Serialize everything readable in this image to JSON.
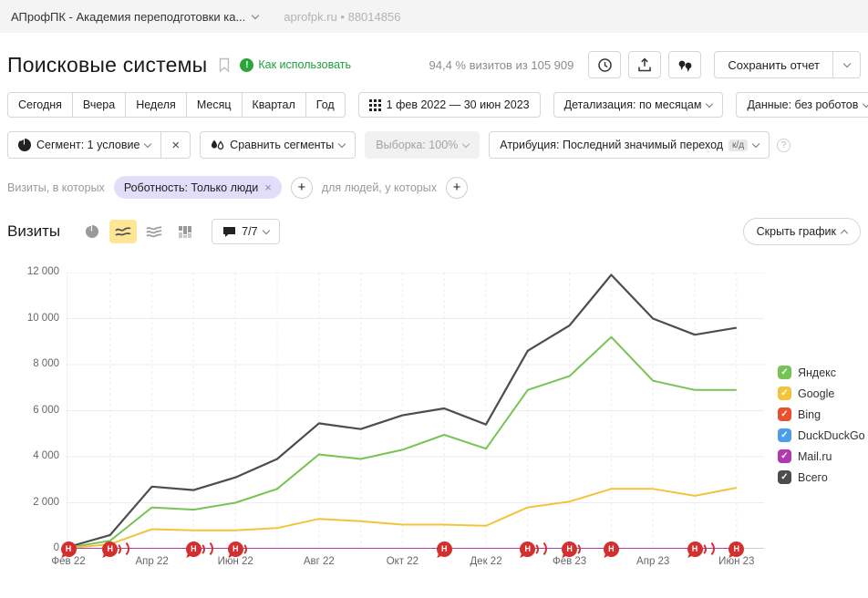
{
  "top_bar": {
    "counter_name": "АПрофПК - Академия переподготовки ка...",
    "counter_meta": "aprofpk.ru • 88014856"
  },
  "header": {
    "title": "Поисковые системы",
    "help_link": "Как использовать",
    "visits_share": "94,4 % визитов из 105 909",
    "save_report": "Сохранить отчет"
  },
  "period": {
    "presets": [
      "Сегодня",
      "Вчера",
      "Неделя",
      "Месяц",
      "Квартал",
      "Год"
    ],
    "range": "1 фев 2022 — 30 июн 2023",
    "detail": "Детализация: по месяцам",
    "data_mode": "Данные: без роботов"
  },
  "segments": {
    "segment": "Сегмент: 1 условие",
    "segment_close": "×",
    "compare": "Сравнить сегменты",
    "sampling": "Выборка: 100%",
    "attribution": "Атрибуция: Последний значимый переход",
    "attribution_badge": "к/д"
  },
  "filters": {
    "visits_label": "Визиты, в которых",
    "chip": "Роботность: Только люди",
    "chip_close": "×",
    "plus": "+",
    "people_label": "для людей, у которых"
  },
  "chart_header": {
    "title": "Визиты",
    "annotations_count": "7/7",
    "hide_chart": "Скрыть график"
  },
  "chart_data": {
    "type": "line",
    "title": "Визиты",
    "x": [
      "Фев 22",
      "Мар 22",
      "Апр 22",
      "Май 22",
      "Июн 22",
      "Июл 22",
      "Авг 22",
      "Сен 22",
      "Окт 22",
      "Ноя 22",
      "Дек 22",
      "Янв 23",
      "Фев 23",
      "Мар 23",
      "Апр 23",
      "Май 23",
      "Июн 23"
    ],
    "xtick_every": 2,
    "ylim": [
      0,
      12000
    ],
    "yticks": [
      {
        "value": 12000,
        "label": "12 000"
      },
      {
        "value": 10000,
        "label": "10 000"
      },
      {
        "value": 8000,
        "label": "8 000"
      },
      {
        "value": 6000,
        "label": "6 000"
      },
      {
        "value": 4000,
        "label": "4 000"
      },
      {
        "value": 2000,
        "label": "2 000"
      },
      {
        "value": 0,
        "label": "0"
      }
    ],
    "grid": true,
    "legend_position": "right",
    "series": [
      {
        "name": "Яндекс",
        "color": "#77c353",
        "values": [
          50,
          350,
          1800,
          1700,
          2000,
          2600,
          4100,
          3900,
          4300,
          4950,
          4350,
          6900,
          7500,
          9200,
          7300,
          6900,
          6900
        ]
      },
      {
        "name": "Google",
        "color": "#f4c33c",
        "values": [
          20,
          200,
          850,
          800,
          800,
          900,
          1300,
          1200,
          1050,
          1050,
          1000,
          1800,
          2050,
          2600,
          2600,
          2300,
          2650
        ]
      },
      {
        "name": "Bing",
        "color": "#e8502e",
        "values": [
          0,
          0,
          0,
          0,
          0,
          0,
          0,
          0,
          0,
          0,
          0,
          0,
          0,
          0,
          0,
          0,
          0
        ]
      },
      {
        "name": "DuckDuckGo",
        "color": "#4a9fe8",
        "values": [
          0,
          0,
          0,
          0,
          0,
          0,
          0,
          0,
          0,
          0,
          0,
          0,
          0,
          0,
          0,
          0,
          0
        ]
      },
      {
        "name": "Mail.ru",
        "color": "#b13ab1",
        "values": [
          0,
          0,
          0,
          0,
          0,
          0,
          0,
          0,
          0,
          0,
          0,
          0,
          0,
          0,
          0,
          0,
          0
        ]
      },
      {
        "name": "Всего",
        "color": "#4d4d4d",
        "values": [
          80,
          600,
          2700,
          2550,
          3100,
          3900,
          5450,
          5200,
          5800,
          6100,
          5400,
          8600,
          9700,
          11900,
          10000,
          9300,
          9600
        ]
      }
    ],
    "draw_order": [
      5,
      0,
      1,
      2,
      3,
      4
    ],
    "annotations": [
      {
        "month": 0,
        "label": "Н",
        "ripples": 0
      },
      {
        "month": 1,
        "label": "Н",
        "ripples": 2
      },
      {
        "month": 3,
        "label": "Н",
        "ripples": 2
      },
      {
        "month": 4,
        "label": "Н",
        "ripples": 1
      },
      {
        "month": 9,
        "label": "Н",
        "ripples": 0
      },
      {
        "month": 11,
        "label": "Н",
        "ripples": 2
      },
      {
        "month": 12,
        "label": "Н",
        "ripples": 1
      },
      {
        "month": 13,
        "label": "Н",
        "ripples": 0
      },
      {
        "month": 15,
        "label": "Н",
        "ripples": 2
      },
      {
        "month": 16,
        "label": "Н",
        "ripples": 0
      }
    ]
  }
}
